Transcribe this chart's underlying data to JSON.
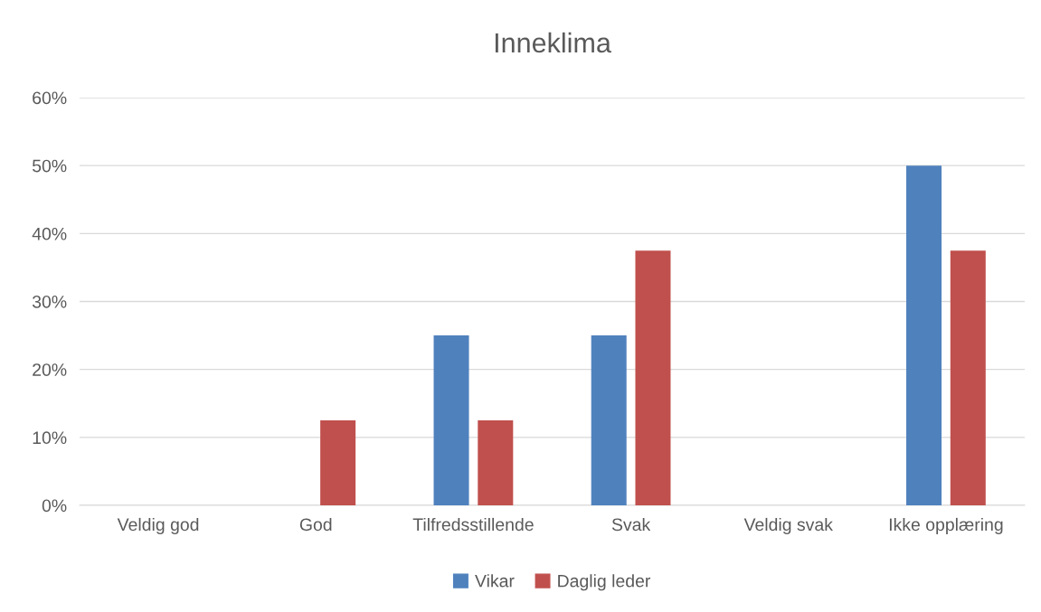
{
  "chart_data": {
    "type": "bar",
    "title": "Inneklima",
    "categories": [
      "Veldig god",
      "God",
      "Tilfredsstillende",
      "Svak",
      "Veldig svak",
      "Ikke opplæring"
    ],
    "series": [
      {
        "name": "Vikar",
        "color": "#4f81bd",
        "values": [
          0,
          0,
          25,
          25,
          0,
          50
        ]
      },
      {
        "name": "Daglig leder",
        "color": "#c0504d",
        "values": [
          0,
          12.5,
          12.5,
          37.5,
          0,
          37.5
        ]
      }
    ],
    "ylim": [
      0,
      60
    ],
    "yticks": [
      {
        "value": 0,
        "label": "0%"
      },
      {
        "value": 10,
        "label": "10%"
      },
      {
        "value": 20,
        "label": "20%"
      },
      {
        "value": 30,
        "label": "30%"
      },
      {
        "value": 40,
        "label": "40%"
      },
      {
        "value": 50,
        "label": "50%"
      },
      {
        "value": 60,
        "label": "60%"
      }
    ],
    "grid": "y",
    "legend": "bottom"
  }
}
